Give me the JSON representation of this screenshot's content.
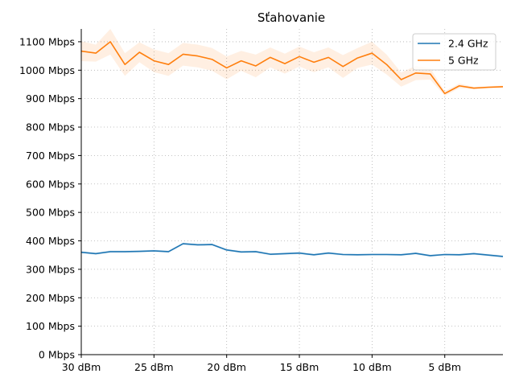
{
  "chart_data": {
    "type": "line",
    "title": "Sťahovanie",
    "xlabel": "",
    "ylabel": "",
    "x_reversed": true,
    "xlim": [
      30,
      1
    ],
    "ylim": [
      0,
      1145
    ],
    "grid": true,
    "legend_position": "top-right",
    "x_ticks": [
      {
        "value": 30,
        "label": "30 dBm"
      },
      {
        "value": 25,
        "label": "25 dBm"
      },
      {
        "value": 20,
        "label": "20 dBm"
      },
      {
        "value": 15,
        "label": "15 dBm"
      },
      {
        "value": 10,
        "label": "10 dBm"
      },
      {
        "value": 5,
        "label": "5 dBm"
      }
    ],
    "y_ticks": [
      {
        "value": 0,
        "label": "0 Mbps"
      },
      {
        "value": 100,
        "label": "100 Mbps"
      },
      {
        "value": 200,
        "label": "200 Mbps"
      },
      {
        "value": 300,
        "label": "300 Mbps"
      },
      {
        "value": 400,
        "label": "400 Mbps"
      },
      {
        "value": 500,
        "label": "500 Mbps"
      },
      {
        "value": 600,
        "label": "600 Mbps"
      },
      {
        "value": 700,
        "label": "700 Mbps"
      },
      {
        "value": 800,
        "label": "800 Mbps"
      },
      {
        "value": 900,
        "label": "900 Mbps"
      },
      {
        "value": 1000,
        "label": "1000 Mbps"
      },
      {
        "value": 1100,
        "label": "1100 Mbps"
      }
    ],
    "x": [
      30,
      29,
      28,
      27,
      26,
      25,
      24,
      23,
      22,
      21,
      20,
      19,
      18,
      17,
      16,
      15,
      14,
      13,
      12,
      11,
      10,
      9,
      8,
      7,
      6,
      5,
      4,
      3,
      2,
      1
    ],
    "series": [
      {
        "name": "2.4 GHz",
        "color": "#1f77b4",
        "values": [
          360,
          355,
          362,
          362,
          363,
          365,
          362,
          390,
          386,
          387,
          368,
          361,
          362,
          353,
          355,
          357,
          351,
          357,
          352,
          351,
          352,
          352,
          351,
          356,
          348,
          352,
          351,
          355,
          350,
          345
        ],
        "band": 4
      },
      {
        "name": "5 GHz",
        "color": "#ff7f0e",
        "values": [
          1067,
          1060,
          1100,
          1020,
          1063,
          1033,
          1020,
          1056,
          1050,
          1038,
          1008,
          1033,
          1015,
          1045,
          1023,
          1048,
          1028,
          1045,
          1013,
          1043,
          1060,
          1020,
          967,
          990,
          987,
          918,
          945,
          937,
          940,
          942
        ],
        "band": [
          35,
          30,
          45,
          40,
          35,
          40,
          40,
          40,
          40,
          40,
          40,
          35,
          40,
          35,
          35,
          35,
          35,
          35,
          40,
          35,
          40,
          35,
          25,
          25,
          20,
          8,
          8,
          4,
          4,
          4
        ]
      }
    ]
  }
}
